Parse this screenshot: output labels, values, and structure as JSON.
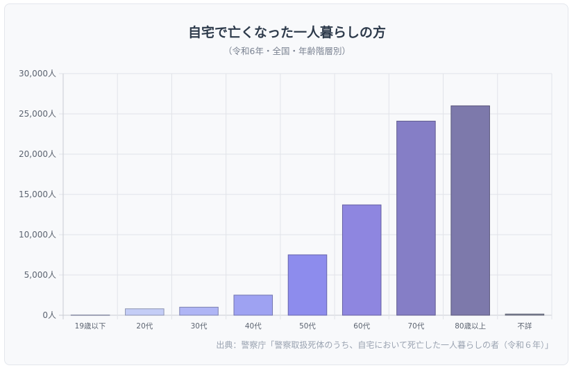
{
  "chart_data": {
    "type": "bar",
    "title": "自宅で亡くなった一人暮らしの方",
    "subtitle": "（令和6年・全国・年齢階層別）",
    "categories": [
      "19歳以下",
      "20代",
      "30代",
      "40代",
      "50代",
      "60代",
      "70代",
      "80歳以上",
      "不詳"
    ],
    "values": [
      50,
      800,
      1000,
      2500,
      7500,
      13700,
      24100,
      26000,
      150
    ],
    "ylim": [
      0,
      30000
    ],
    "yticks": [
      "0人",
      "5,000人",
      "10,000人",
      "15,000人",
      "20,000人",
      "25,000人",
      "30,000人"
    ],
    "bar_colors": [
      "#dbe0fb",
      "#c4cdf6",
      "#afb5f5",
      "#9ea2f2",
      "#8d8ced",
      "#8e86e0",
      "#857ec6",
      "#7d79ab",
      "#8a8ea4"
    ],
    "grid": true,
    "source": "出典：警察庁「警察取扱死体のうち、自宅において死亡した一人暮らしの者（令和６年）」"
  }
}
